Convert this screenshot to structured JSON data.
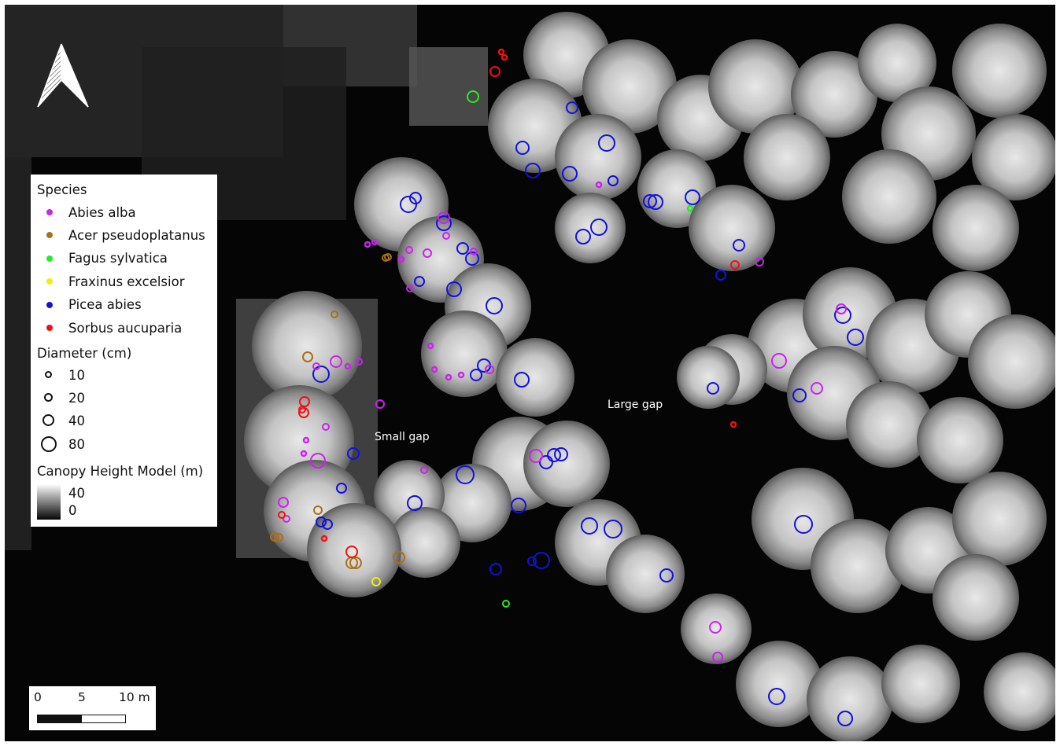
{
  "map": {
    "legend": {
      "species_title": "Species",
      "species": [
        {
          "name": "Abies alba",
          "color": "#cc22ee"
        },
        {
          "name": "Acer pseudoplatanus",
          "color": "#a8701a"
        },
        {
          "name": "Fagus sylvatica",
          "color": "#22ee22"
        },
        {
          "name": "Fraxinus excelsior",
          "color": "#eeee11"
        },
        {
          "name": "Picea abies",
          "color": "#1111dd"
        },
        {
          "name": "Sorbus aucuparia",
          "color": "#ee1111"
        }
      ],
      "diameter_title": "Diameter (cm)",
      "diameters": [
        "10",
        "20",
        "40",
        "80"
      ],
      "chm_title": "Canopy Height Model (m)",
      "chm_max": "40",
      "chm_min": "0"
    },
    "labels": {
      "small_gap": "Small gap",
      "large_gap": "Large gap"
    },
    "scale_bar": {
      "ticks": [
        "0",
        "5",
        "10 m"
      ]
    },
    "north_arrow": "north-arrow-icon"
  }
}
